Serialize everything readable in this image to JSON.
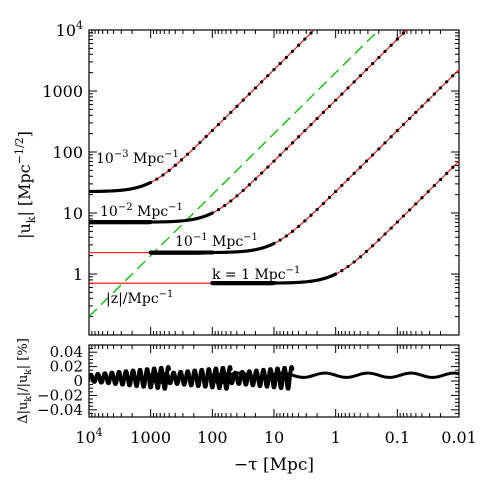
{
  "chart_data": [
    {
      "type": "line",
      "panel": "top",
      "xlabel": "−τ [Mpc]",
      "ylabel": "|u_k| [Mpc^{-1/2}]",
      "x_scale": "log-reversed",
      "y_scale": "log",
      "xlim": [
        10000,
        0.01
      ],
      "ylim": [
        0.1,
        10000
      ],
      "x_ticks": [
        10000,
        1000,
        100,
        10,
        1,
        0.1,
        0.01
      ],
      "x_tick_labels": [
        "10^4",
        "1000",
        "100",
        "10",
        "1",
        "0.1",
        "0.01"
      ],
      "y_ticks": [
        1,
        10,
        100,
        1000,
        10000
      ],
      "y_tick_labels": [
        "1",
        "10",
        "100",
        "1000",
        "10^4"
      ],
      "series": [
        {
          "name": "10^{-3} Mpc^{-1}",
          "k": 0.001,
          "plateau": 22.4,
          "mode_start": 10000
        },
        {
          "name": "10^{-2} Mpc^{-1}",
          "k": 0.01,
          "plateau": 7.07,
          "mode_start": 10000
        },
        {
          "name": "10^{-1} Mpc^{-1}",
          "k": 0.1,
          "plateau": 2.24,
          "mode_start": 1000
        },
        {
          "name": "k = 1 Mpc^{-1}",
          "k": 1,
          "plateau": 0.707,
          "mode_start": 100
        }
      ],
      "reference_line": {
        "name": "|z|/Mpc^{-1}",
        "x": [
          10000,
          0.01
        ],
        "y": [
          0.2,
          200000
        ]
      },
      "label_text": {
        "k3": {
          "base": "10",
          "exp": "−3",
          "unit": " Mpc",
          "unit_exp": "−1"
        },
        "k2": {
          "base": "10",
          "exp": "−2",
          "unit": " Mpc",
          "unit_exp": "−1"
        },
        "k1": {
          "base": "10",
          "exp": "−1",
          "unit": " Mpc",
          "unit_exp": "−1"
        },
        "k0": {
          "base": "k = 1 Mpc",
          "unit_exp": "−1"
        },
        "z": "|z|/Mpc",
        "z_exp": "−1"
      },
      "colors": {
        "line": "#ff0000",
        "dots": "#000000",
        "reference": "#00bb00"
      }
    },
    {
      "type": "scatter",
      "panel": "bottom",
      "ylabel": "Δ|u_k|/|u_k| [%]",
      "ylim": [
        -0.05,
        0.05
      ],
      "y_ticks": [
        -0.04,
        -0.02,
        0,
        0.02,
        0.04
      ],
      "y_tick_labels": [
        "−0.04",
        "−0.02",
        "0",
        "0.02",
        "0.04"
      ]
    }
  ]
}
